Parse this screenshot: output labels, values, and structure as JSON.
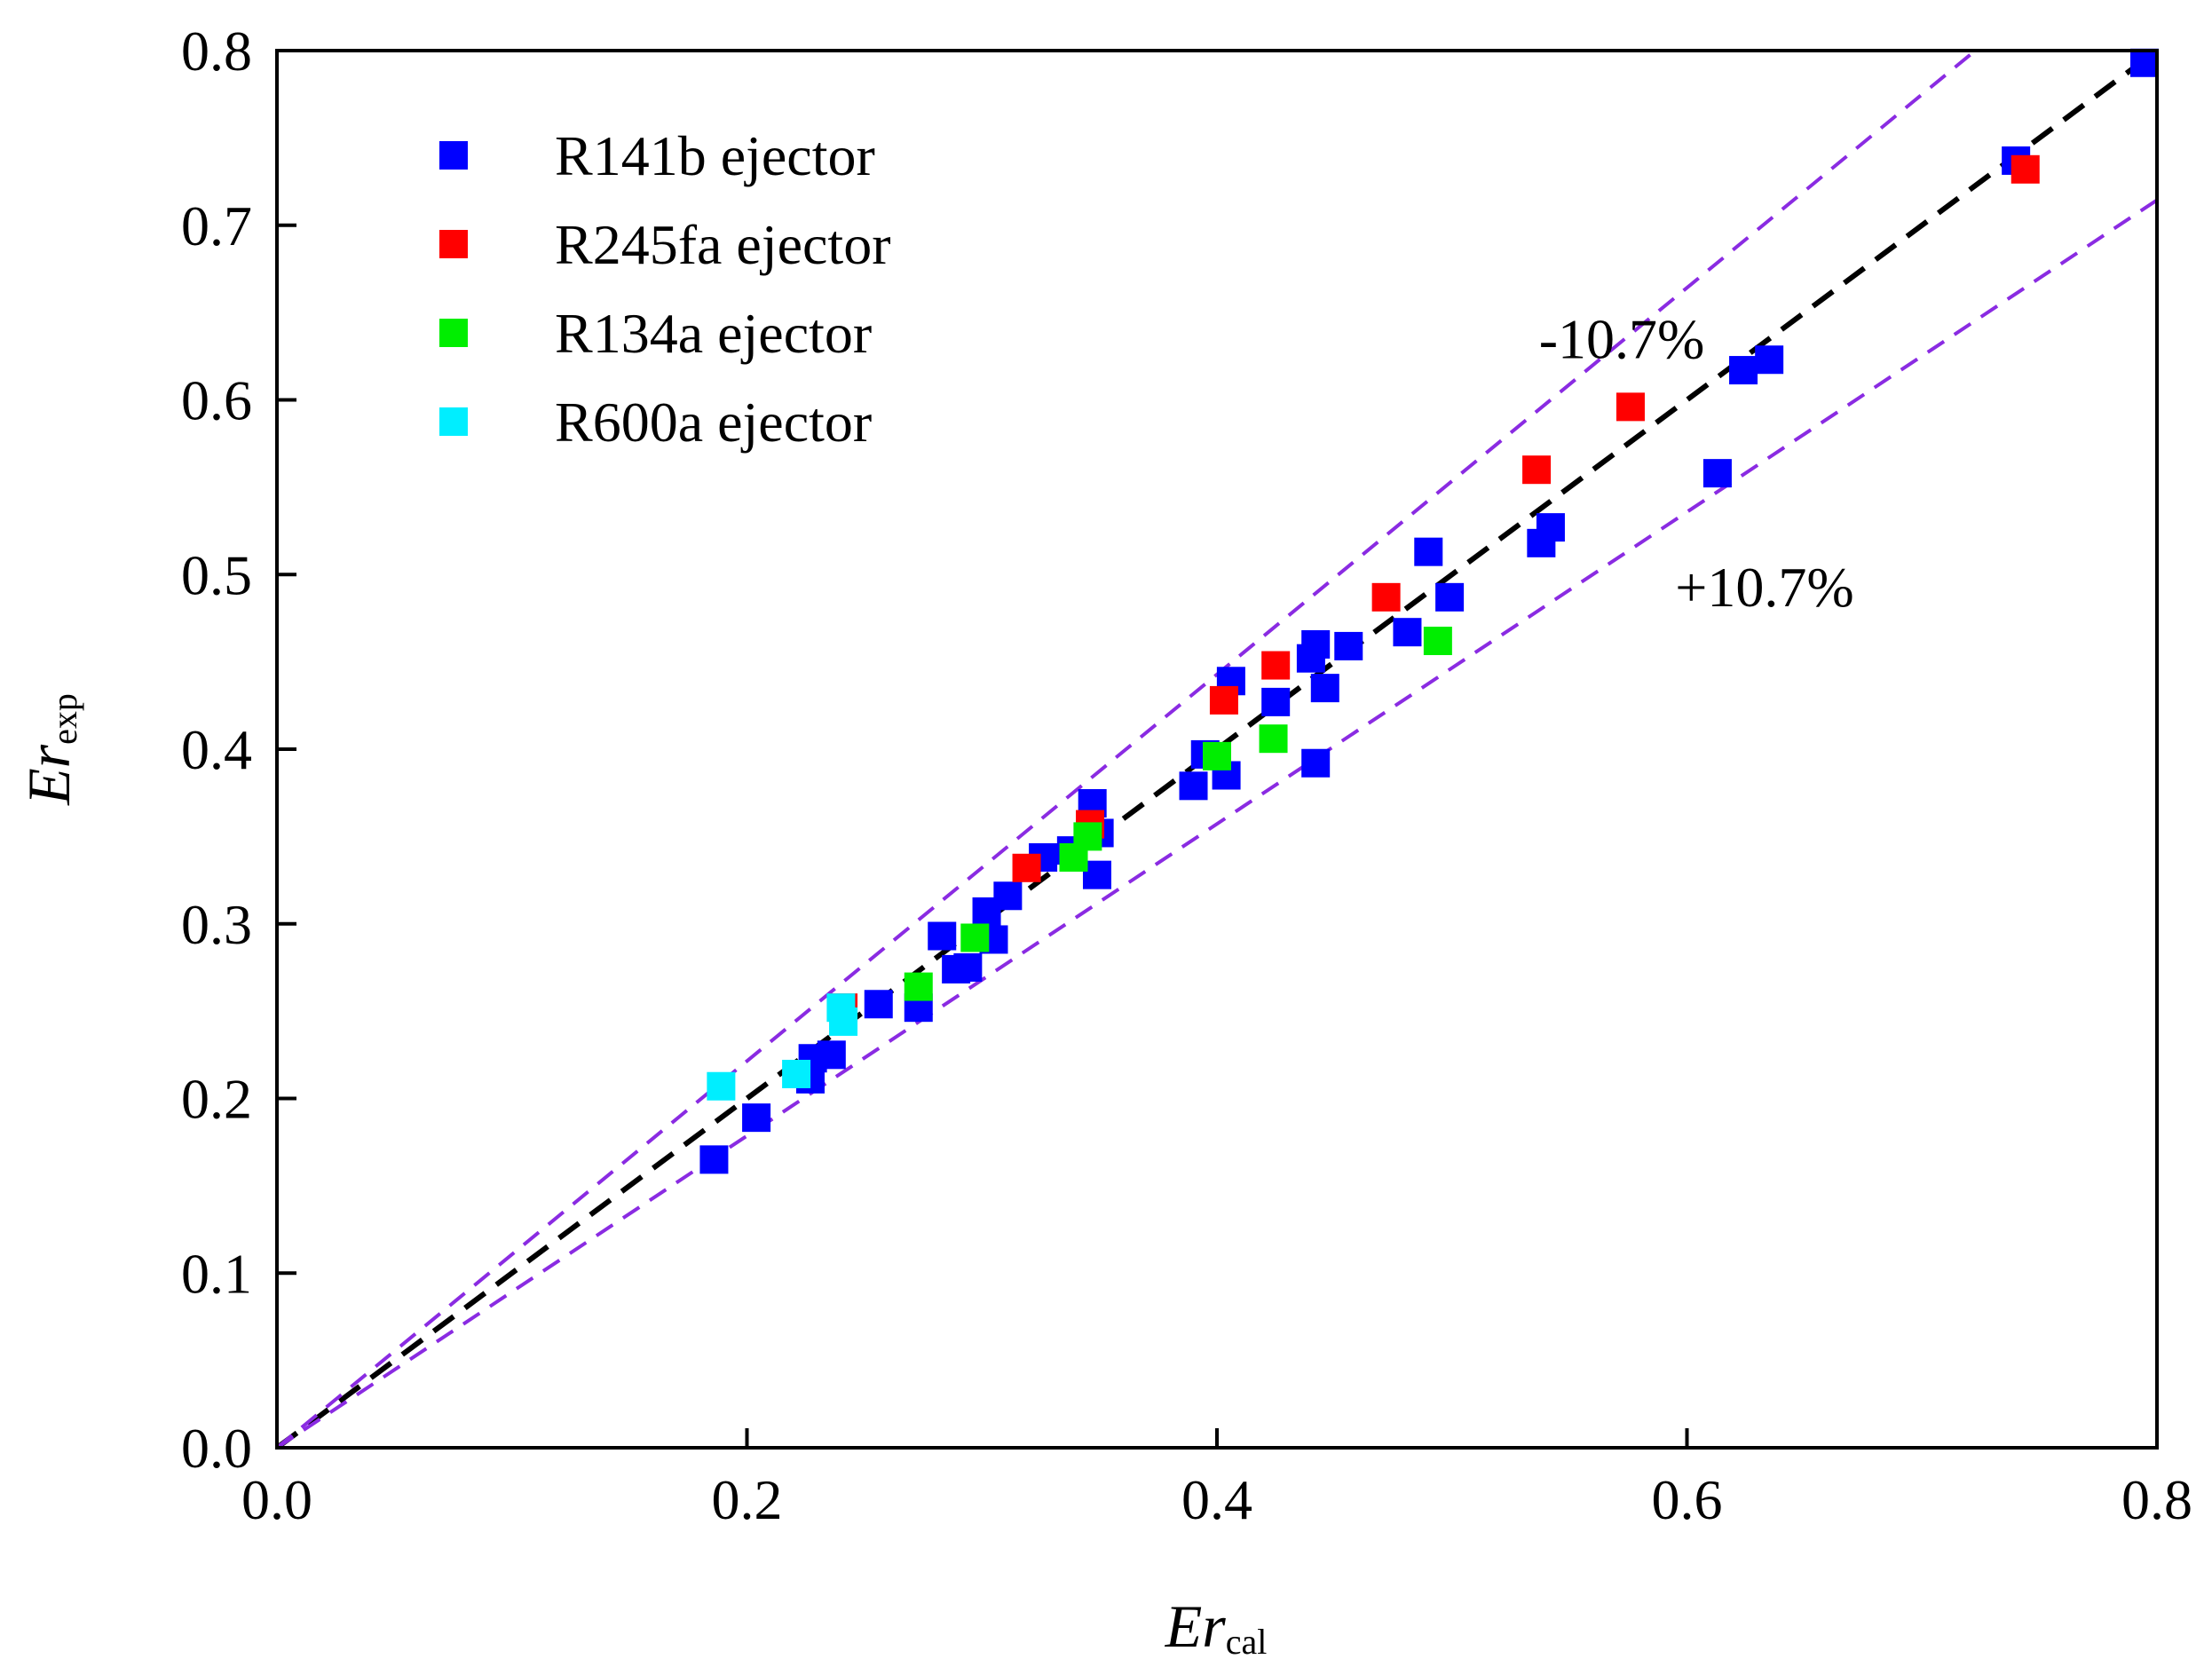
{
  "chart_data": {
    "type": "scatter",
    "title": "",
    "xlabel": {
      "main": "Er",
      "sub": "cal"
    },
    "ylabel": {
      "main": "Er",
      "sub": "exp"
    },
    "xlim": [
      0.0,
      0.8
    ],
    "ylim": [
      0.0,
      0.8
    ],
    "xticks": [
      "0.0",
      "0.2",
      "0.4",
      "0.6",
      "0.8"
    ],
    "yticks": [
      "0.0",
      "0.1",
      "0.2",
      "0.3",
      "0.4",
      "0.5",
      "0.6",
      "0.7",
      "0.8"
    ],
    "grid": false,
    "legend_position": "top-left",
    "reference_lines": [
      {
        "slope": 1.0,
        "color": "#000000",
        "style": "dashed"
      },
      {
        "slope": 1.107,
        "color": "#8a2be2",
        "style": "dashed",
        "label": "-10.7%"
      },
      {
        "slope": 0.893,
        "color": "#8a2be2",
        "style": "dashed",
        "label": "+10.7%"
      }
    ],
    "annotations": [
      {
        "text": "-10.7%",
        "x": 0.537,
        "y": 0.635
      },
      {
        "text": "+10.7%",
        "x": 0.595,
        "y": 0.493
      }
    ],
    "series": [
      {
        "name": "R141b ejector",
        "color": "#0000ff",
        "points": [
          [
            0.186,
            0.165
          ],
          [
            0.204,
            0.189
          ],
          [
            0.227,
            0.211
          ],
          [
            0.228,
            0.223
          ],
          [
            0.236,
            0.225
          ],
          [
            0.256,
            0.254
          ],
          [
            0.273,
            0.252
          ],
          [
            0.283,
            0.293
          ],
          [
            0.289,
            0.274
          ],
          [
            0.294,
            0.275
          ],
          [
            0.302,
            0.307
          ],
          [
            0.305,
            0.291
          ],
          [
            0.311,
            0.316
          ],
          [
            0.326,
            0.338
          ],
          [
            0.338,
            0.342
          ],
          [
            0.347,
            0.369
          ],
          [
            0.35,
            0.352
          ],
          [
            0.349,
            0.328
          ],
          [
            0.39,
            0.379
          ],
          [
            0.395,
            0.397
          ],
          [
            0.404,
            0.385
          ],
          [
            0.406,
            0.439
          ],
          [
            0.425,
            0.427
          ],
          [
            0.44,
            0.452
          ],
          [
            0.442,
            0.46
          ],
          [
            0.446,
            0.435
          ],
          [
            0.442,
            0.392
          ],
          [
            0.456,
            0.459
          ],
          [
            0.481,
            0.467
          ],
          [
            0.49,
            0.513
          ],
          [
            0.499,
            0.487
          ],
          [
            0.538,
            0.518
          ],
          [
            0.542,
            0.527
          ],
          [
            0.613,
            0.558
          ],
          [
            0.624,
            0.617
          ],
          [
            0.635,
            0.623
          ],
          [
            0.74,
            0.737
          ],
          [
            0.798,
            0.793
          ]
        ]
      },
      {
        "name": "R245fa ejector",
        "color": "#ff0000",
        "points": [
          [
            0.241,
            0.252
          ],
          [
            0.319,
            0.332
          ],
          [
            0.346,
            0.357
          ],
          [
            0.403,
            0.428
          ],
          [
            0.425,
            0.448
          ],
          [
            0.472,
            0.487
          ],
          [
            0.536,
            0.56
          ],
          [
            0.576,
            0.596
          ],
          [
            0.744,
            0.732
          ]
        ]
      },
      {
        "name": "R134a ejector",
        "color": "#00ee00",
        "points": [
          [
            0.273,
            0.264
          ],
          [
            0.297,
            0.292
          ],
          [
            0.339,
            0.338
          ],
          [
            0.345,
            0.35
          ],
          [
            0.4,
            0.396
          ],
          [
            0.424,
            0.406
          ],
          [
            0.494,
            0.462
          ]
        ]
      },
      {
        "name": "R600a ejector",
        "color": "#00eeff",
        "points": [
          [
            0.189,
            0.207
          ],
          [
            0.221,
            0.214
          ],
          [
            0.241,
            0.244
          ],
          [
            0.24,
            0.252
          ]
        ]
      }
    ]
  }
}
